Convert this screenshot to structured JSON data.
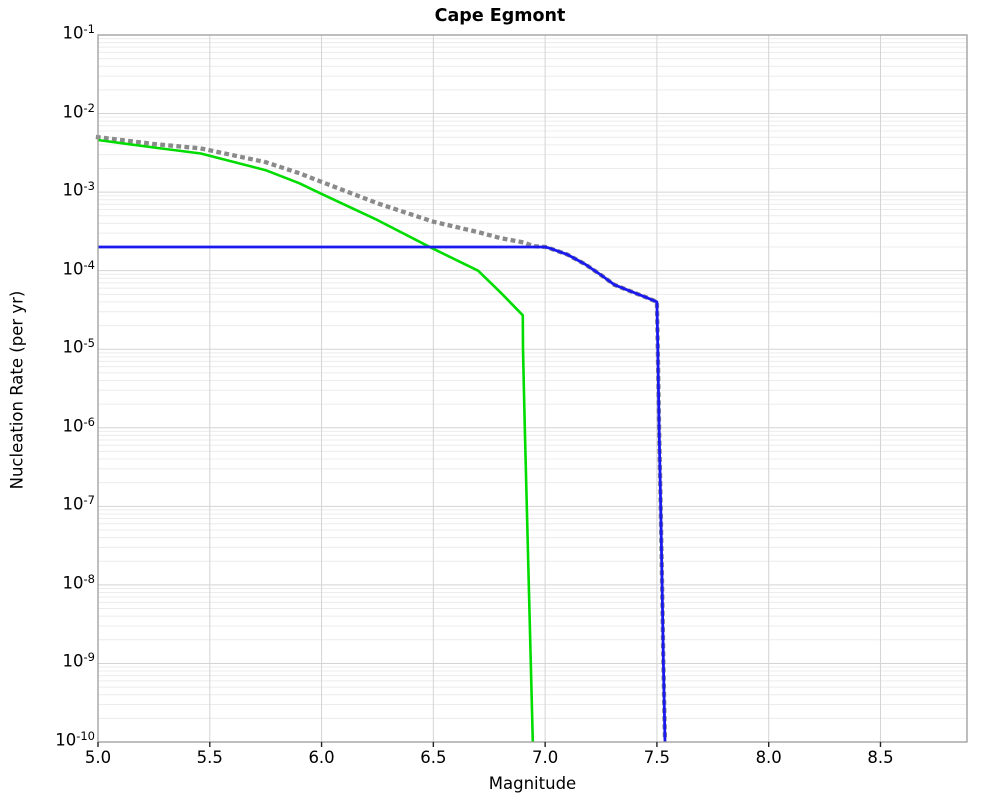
{
  "title": "Cape Egmont",
  "xlabel": "Magnitude",
  "ylabel": "Nucleation Rate (per yr)",
  "colors": {
    "green_line": "#00dc00",
    "blue_line": "#1a1aee",
    "gray_dotted": "#8a8a8a",
    "grid_major": "#d4d4d4",
    "grid_minor": "#ececec",
    "spine": "#9b9b9b",
    "tick_mark": "#222222",
    "text": "#000000"
  },
  "chart_data": {
    "type": "line",
    "title": "Cape Egmont",
    "xlabel": "Magnitude",
    "ylabel": "Nucleation Rate (per yr)",
    "xlim": [
      5.0,
      8.887
    ],
    "ylim": [
      1e-10,
      0.1
    ],
    "y_scale": "log",
    "grid": "horizontal log major+minor, vertical at 0.5-magnitude majors",
    "legend": "none",
    "x_ticks": [
      {
        "value": 5.0,
        "label": "5.0"
      },
      {
        "value": 5.5,
        "label": "5.5"
      },
      {
        "value": 6.0,
        "label": "6.0"
      },
      {
        "value": 6.5,
        "label": "6.5"
      },
      {
        "value": 7.0,
        "label": "7.0"
      },
      {
        "value": 7.5,
        "label": "7.5"
      },
      {
        "value": 8.0,
        "label": "8.0"
      },
      {
        "value": 8.5,
        "label": "8.5"
      }
    ],
    "x_major_gridlines": [
      5.5,
      6.0,
      6.5,
      7.0,
      7.5,
      8.0,
      8.5
    ],
    "y_tick_exponents": [
      -1,
      -2,
      -3,
      -4,
      -5,
      -6,
      -7,
      -8,
      -9,
      -10
    ],
    "series": [
      {
        "name": "total-rate-dotted-gray",
        "style": "dotted",
        "color": "#8a8a8a",
        "points": [
          [
            5.0,
            0.005
          ],
          [
            5.25,
            0.0041
          ],
          [
            5.46,
            0.0036
          ],
          [
            5.75,
            0.0024
          ],
          [
            5.9,
            0.00174
          ],
          [
            6.0,
            0.00135
          ],
          [
            6.25,
            0.00072
          ],
          [
            6.5,
            0.00042
          ],
          [
            6.7,
            0.00031
          ],
          [
            6.8,
            0.00026
          ],
          [
            6.9,
            0.00023
          ],
          [
            6.95,
            0.000205
          ],
          [
            7.0,
            0.0002
          ],
          [
            7.02,
            0.000193
          ],
          [
            7.05,
            0.00018
          ],
          [
            7.1,
            0.00016
          ],
          [
            7.18,
            0.00012
          ],
          [
            7.25,
            8.8e-05
          ],
          [
            7.31,
            6.6e-05
          ],
          [
            7.38,
            5.5e-05
          ],
          [
            7.45,
            4.6e-05
          ],
          [
            7.5,
            4e-05
          ],
          [
            7.504,
            1e-05
          ],
          [
            7.51,
            1e-06
          ],
          [
            7.517,
            1e-07
          ],
          [
            7.523,
            1e-08
          ],
          [
            7.529,
            1e-09
          ],
          [
            7.536,
            1e-10
          ]
        ]
      },
      {
        "name": "tapered-gr-solid-green",
        "style": "solid",
        "color": "#00dc00",
        "points": [
          [
            5.0,
            0.0046
          ],
          [
            5.25,
            0.0037
          ],
          [
            5.46,
            0.0031
          ],
          [
            5.75,
            0.0019
          ],
          [
            5.9,
            0.0013
          ],
          [
            6.0,
            0.00095
          ],
          [
            6.25,
            0.00044
          ],
          [
            6.5,
            0.00019
          ],
          [
            6.7,
            0.0001
          ],
          [
            6.8,
            5.3e-05
          ],
          [
            6.9,
            2.7e-05
          ],
          [
            6.901,
            1e-05
          ],
          [
            6.909,
            1e-06
          ],
          [
            6.918,
            1e-07
          ],
          [
            6.927,
            1e-08
          ],
          [
            6.936,
            1e-09
          ],
          [
            6.945,
            1e-10
          ]
        ]
      },
      {
        "name": "characteristic-solid-blue",
        "style": "solid",
        "color": "#1a1aee",
        "points": [
          [
            5.0,
            0.0002
          ],
          [
            7.0,
            0.0002
          ],
          [
            7.02,
            0.000193
          ],
          [
            7.05,
            0.00018
          ],
          [
            7.1,
            0.00016
          ],
          [
            7.18,
            0.00012
          ],
          [
            7.25,
            8.8e-05
          ],
          [
            7.31,
            6.6e-05
          ],
          [
            7.38,
            5.5e-05
          ],
          [
            7.45,
            4.6e-05
          ],
          [
            7.5,
            4e-05
          ],
          [
            7.504,
            1e-05
          ],
          [
            7.51,
            1e-06
          ],
          [
            7.517,
            1e-07
          ],
          [
            7.523,
            1e-08
          ],
          [
            7.529,
            1e-09
          ],
          [
            7.536,
            1e-10
          ]
        ]
      }
    ]
  }
}
